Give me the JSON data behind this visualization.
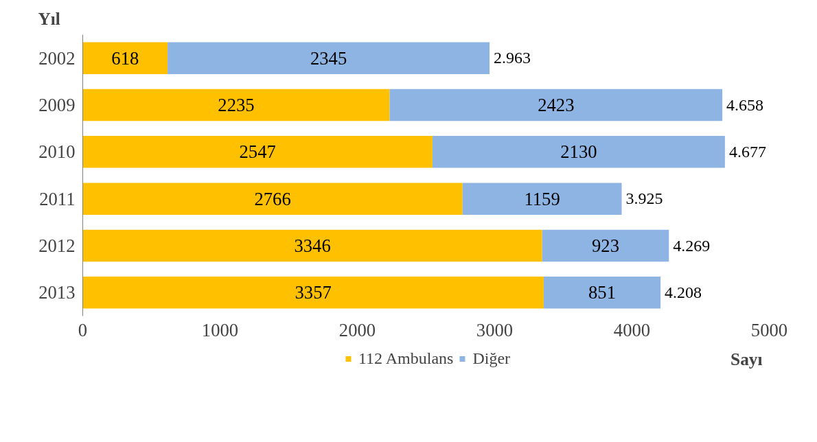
{
  "chart_data": {
    "type": "bar",
    "orientation": "horizontal",
    "stacked": true,
    "ylabel": "Yıl",
    "xlabel": "Sayı",
    "categories": [
      "2002",
      "2009",
      "2010",
      "2011",
      "2012",
      "2013"
    ],
    "series": [
      {
        "name": "112 Ambulans",
        "color": "#ffc000",
        "values": [
          618,
          2235,
          2547,
          2766,
          3346,
          3357
        ]
      },
      {
        "name": "Diğer",
        "color": "#8eb4e3",
        "values": [
          2345,
          2423,
          2130,
          1159,
          923,
          851
        ]
      }
    ],
    "totals": [
      "2.963",
      "4.658",
      "4.677",
      "3.925",
      "4.269",
      "4.208"
    ],
    "data_labels": true,
    "xlim": [
      0,
      5000
    ],
    "xticks": [
      0,
      1000,
      2000,
      3000,
      4000,
      5000
    ],
    "grid": false,
    "legend": "bottom"
  }
}
